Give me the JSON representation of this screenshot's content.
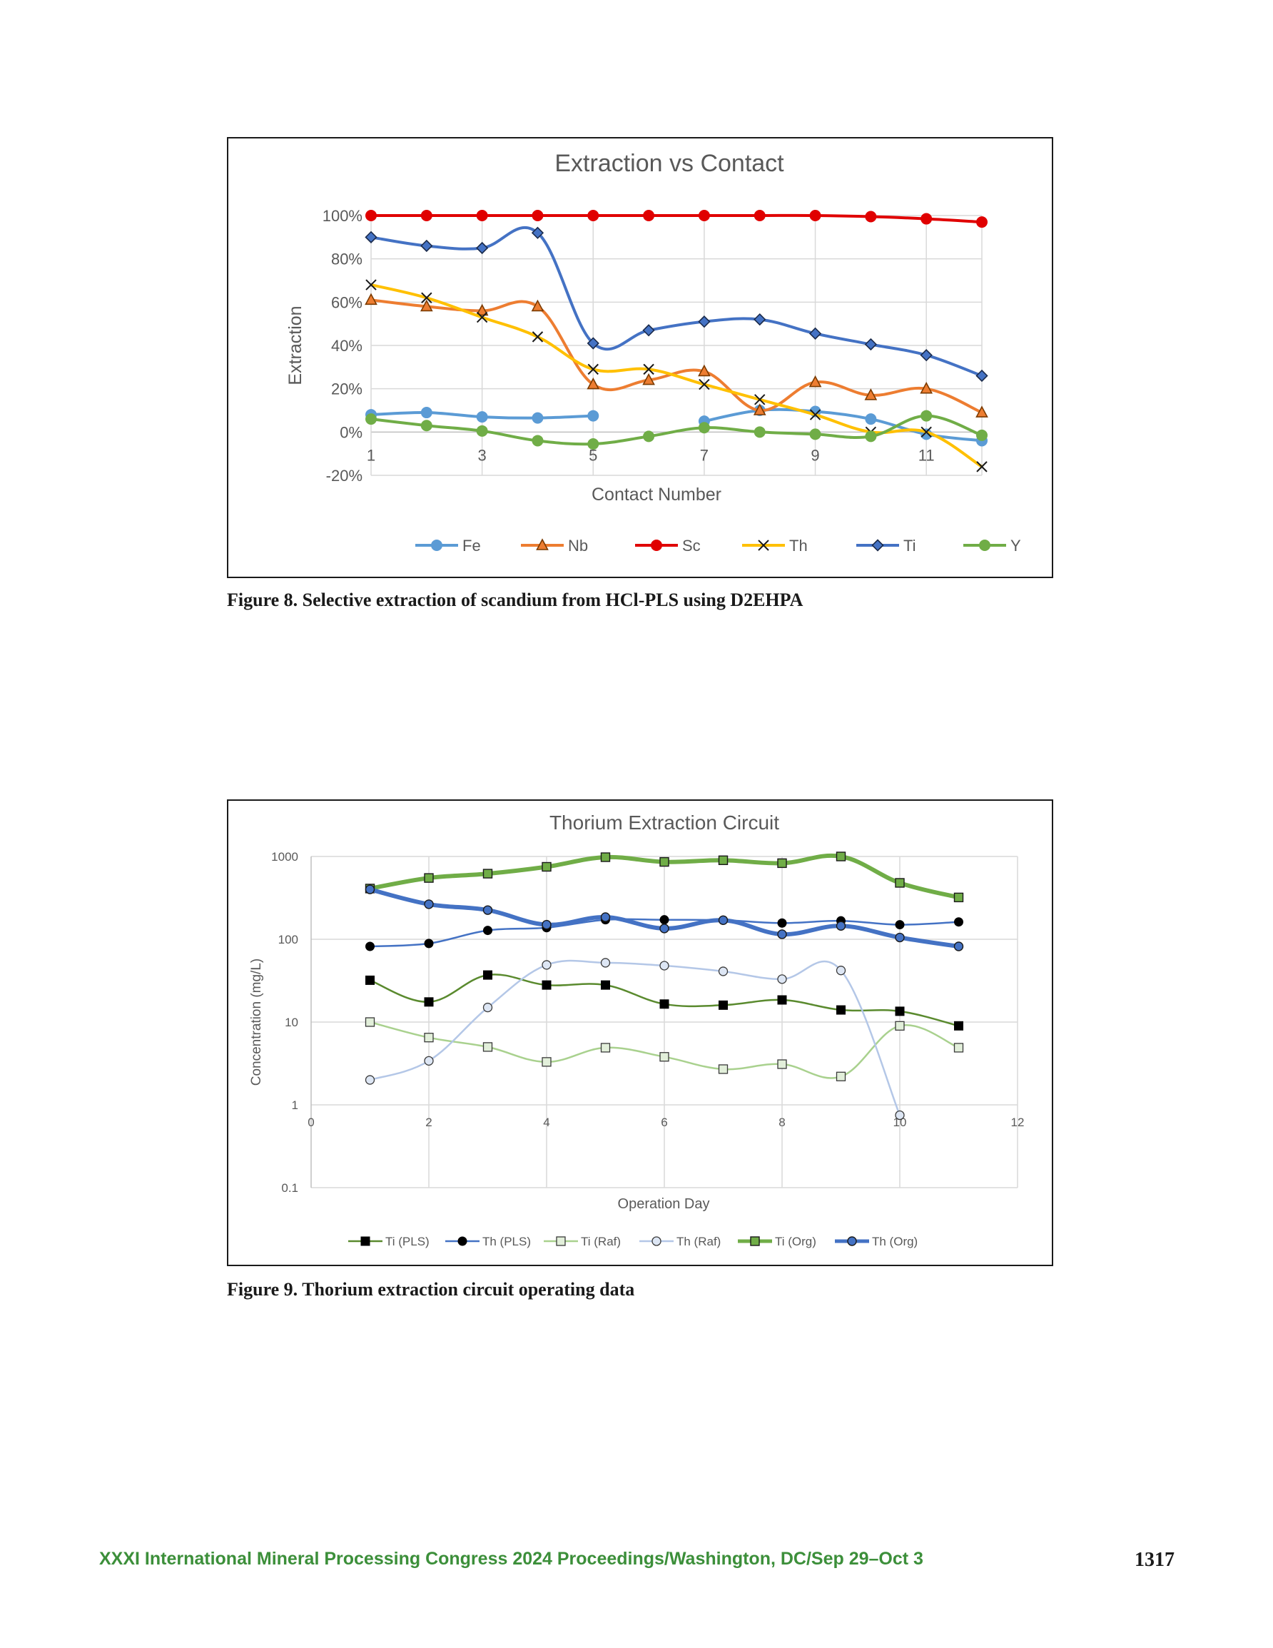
{
  "chart_data": [
    {
      "type": "line",
      "title": "Extraction vs Contact",
      "xlabel": "Contact Number",
      "ylabel": "Extraction",
      "x": [
        1,
        2,
        3,
        4,
        5,
        6,
        7,
        8,
        9,
        10,
        11,
        12
      ],
      "xlim": [
        1,
        12
      ],
      "x_tick_labels": [
        "1",
        "3",
        "5",
        "7",
        "9",
        "11"
      ],
      "ylim": [
        -20,
        100
      ],
      "y_tick_labels": [
        "100%",
        "80%",
        "60%",
        "40%",
        "20%",
        "0%",
        "-20%"
      ],
      "grid": true,
      "smoothed": true,
      "legend_position": "bottom",
      "series": [
        {
          "name": "Fe",
          "color": "#5b9bd5",
          "marker": "circle",
          "values": [
            8,
            9,
            7,
            6.5,
            7.5,
            null,
            5,
            10,
            9.5,
            6,
            -1,
            -4
          ]
        },
        {
          "name": "Nb",
          "color": "#ed7d31",
          "marker": "triangle",
          "values": [
            61,
            58,
            56,
            58,
            22,
            24,
            28,
            10,
            23,
            17,
            20,
            9
          ]
        },
        {
          "name": "Sc",
          "color": "#e00000",
          "marker": "circle",
          "values": [
            100,
            100,
            100,
            100,
            100,
            100,
            100,
            100,
            100,
            99.5,
            98.5,
            97
          ]
        },
        {
          "name": "Th",
          "color": "#ffc000",
          "marker": "x",
          "values": [
            68,
            62,
            53,
            44,
            29,
            29,
            22,
            15,
            8,
            0,
            0,
            -16
          ]
        },
        {
          "name": "Ti",
          "color": "#4472c4",
          "marker": "diamond",
          "values": [
            90,
            86,
            85,
            92,
            41,
            47,
            51,
            52,
            45.5,
            40.5,
            35.5,
            26
          ]
        },
        {
          "name": "Y",
          "color": "#70ad47",
          "marker": "circle",
          "values": [
            6,
            3,
            0.5,
            -4,
            -5.5,
            -2,
            2,
            0,
            -1,
            -2,
            7.5,
            -1.5
          ]
        }
      ]
    },
    {
      "type": "line",
      "title": "Thorium Extraction Circuit",
      "xlabel": "Operation Day",
      "ylabel": "Concentration (mg/L)",
      "x": [
        1,
        2,
        3,
        4,
        5,
        6,
        7,
        8,
        9,
        10,
        11
      ],
      "xlim": [
        0,
        12
      ],
      "x_tick_labels": [
        "0",
        "2",
        "4",
        "6",
        "8",
        "10",
        "12"
      ],
      "y_scale": "log",
      "ylim": [
        0.1,
        1000
      ],
      "y_tick_labels": [
        "1000",
        "100",
        "10",
        "1",
        "0.1"
      ],
      "grid": true,
      "smoothed": true,
      "legend_position": "bottom",
      "series": [
        {
          "name": "Ti (PLS)",
          "color": "#5a8a2e",
          "marker": "square-filled",
          "values": [
            32,
            17.5,
            37,
            28,
            28,
            16.5,
            16,
            18.5,
            14,
            13.5,
            9
          ]
        },
        {
          "name": "Th (PLS)",
          "color": "#4472c4",
          "marker": "circle-filled",
          "values": [
            82,
            89,
            128,
            138,
            172,
            172,
            170,
            157,
            167,
            150,
            162
          ]
        },
        {
          "name": "Ti (Raf)",
          "color": "#a9d18e",
          "marker": "square-open",
          "values": [
            10,
            6.5,
            5,
            3.3,
            4.9,
            3.8,
            2.7,
            3.1,
            2.2,
            9,
            4.9
          ]
        },
        {
          "name": "Th (Raf)",
          "color": "#b4c7e7",
          "marker": "circle-open",
          "values": [
            2,
            3.4,
            15,
            49,
            52,
            48,
            41,
            33,
            42,
            0.75,
            null
          ]
        },
        {
          "name": "Ti (Org)",
          "color": "#70ad47",
          "marker": "square-green",
          "values": [
            410,
            550,
            620,
            750,
            980,
            860,
            900,
            830,
            1000,
            480,
            320
          ]
        },
        {
          "name": "Th (Org)",
          "color": "#4472c4",
          "marker": "circle-blue",
          "values": [
            400,
            265,
            225,
            150,
            185,
            135,
            170,
            115,
            145,
            105,
            82
          ]
        }
      ]
    }
  ],
  "captions": {
    "figure8": "Figure 8. Selective extraction of scandium from HCl-PLS using D2EHPA",
    "figure9": "Figure 9. Thorium extraction circuit operating data"
  },
  "footer": {
    "text": "XXXI International Mineral Processing Congress 2024 Proceedings/Washington, DC/Sep 29–Oct 3",
    "page_number": "1317"
  }
}
